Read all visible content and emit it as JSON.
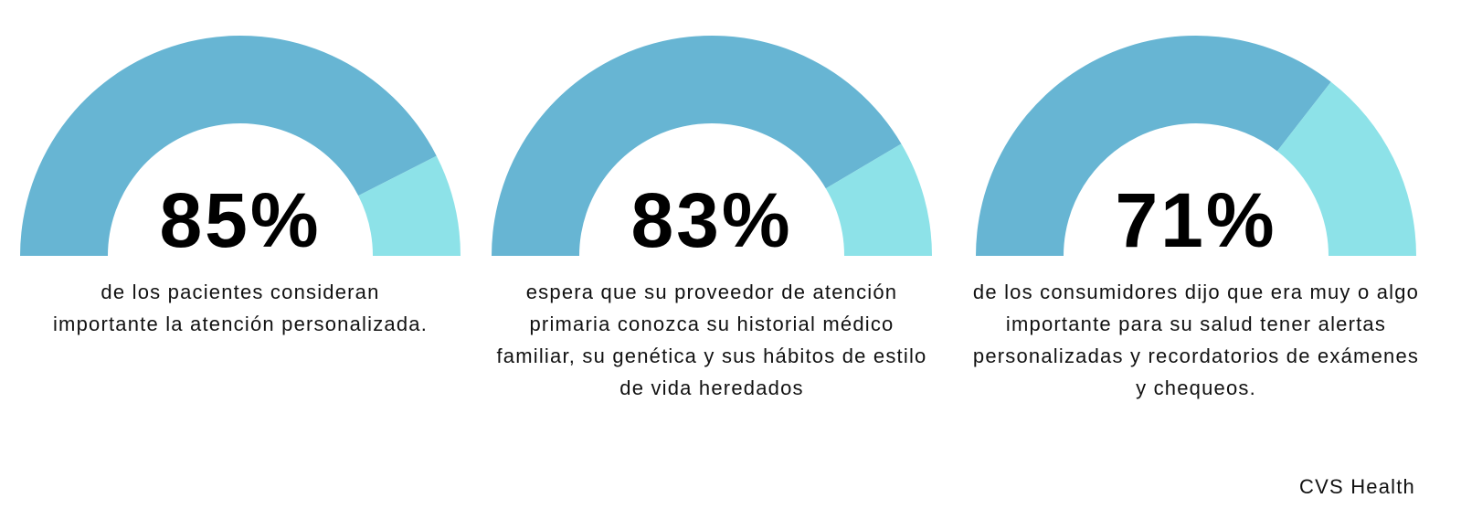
{
  "chart_data": [
    {
      "type": "gauge",
      "value": 85,
      "max": 100,
      "label": "85%",
      "caption": "de los pacientes consideran importante la atención personalizada."
    },
    {
      "type": "gauge",
      "value": 83,
      "max": 100,
      "label": "83%",
      "caption": "espera que su proveedor de atención primaria conozca su historial médico familiar, su genética y sus hábitos de estilo de vida heredados"
    },
    {
      "type": "gauge",
      "value": 71,
      "max": 100,
      "label": "71%",
      "caption": "de los consumidores dijo que era muy o algo importante para su salud tener alertas personalizadas y recordatorios de exámenes y chequeos."
    }
  ],
  "colors": {
    "filled": "#67B5D3",
    "remaining": "#8DE2E8"
  },
  "source": "CVS Health"
}
